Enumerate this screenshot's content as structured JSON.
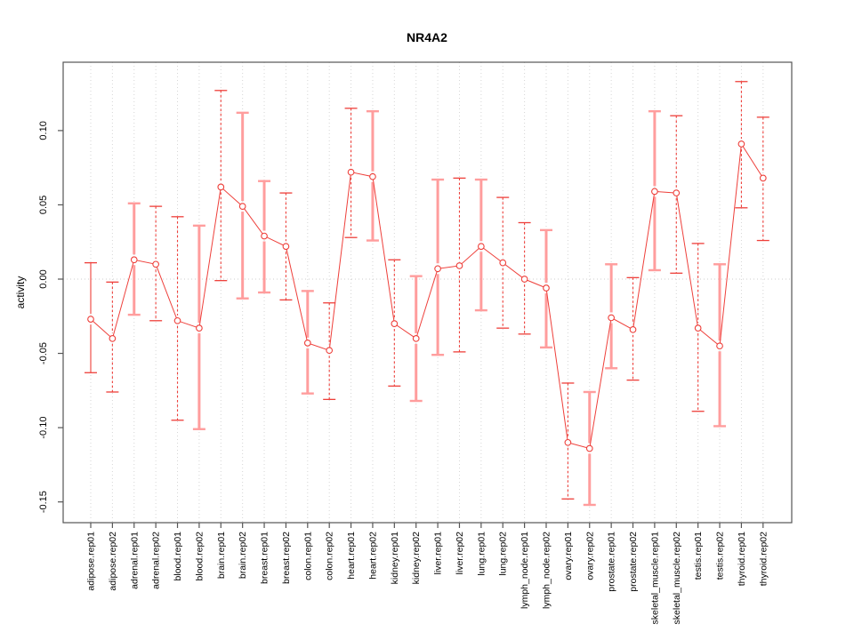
{
  "chart_data": {
    "type": "scatter",
    "title": "NR4A2",
    "xlabel": "",
    "ylabel": "activity",
    "legend": "none",
    "grid": "vertical dotted gridline per category; dotted horizontal line at y=0",
    "ylim": [
      -0.164,
      0.146
    ],
    "yticks": [
      0.1,
      0.05,
      0.0,
      -0.05,
      -0.1,
      -0.15
    ],
    "ytick_labels": [
      "0.10",
      "0.05",
      "0.00",
      "-0.05",
      "-0.10",
      "-0.15"
    ],
    "x_tick_rotation": 90,
    "categories": [
      "adipose.rep01",
      "adipose.rep02",
      "adrenal.rep01",
      "adrenal.rep02",
      "blood.rep01",
      "blood.rep02",
      "brain.rep01",
      "brain.rep02",
      "breast.rep01",
      "breast.rep02",
      "colon.rep01",
      "colon.rep02",
      "heart.rep01",
      "heart.rep02",
      "kidney.rep01",
      "kidney.rep02",
      "liver.rep01",
      "liver.rep02",
      "lung.rep01",
      "lung.rep02",
      "lymph_node.rep01",
      "lymph_node.rep02",
      "ovary.rep01",
      "ovary.rep02",
      "prostate.rep01",
      "prostate.rep02",
      "skeletal_muscle.rep01",
      "skeletal_muscle.rep02",
      "testis.rep01",
      "testis.rep02",
      "thyroid.rep01",
      "thyroid.rep02"
    ],
    "series": [
      {
        "name": "activity",
        "values": [
          -0.027,
          -0.04,
          0.013,
          0.01,
          -0.028,
          -0.033,
          0.062,
          0.049,
          0.029,
          0.022,
          -0.043,
          -0.048,
          0.072,
          0.069,
          -0.03,
          -0.04,
          0.007,
          0.009,
          0.022,
          0.011,
          0.0,
          -0.006,
          -0.11,
          -0.114,
          -0.026,
          -0.034,
          0.059,
          0.058,
          -0.033,
          -0.045,
          0.091,
          0.068
        ],
        "error_low": [
          -0.063,
          -0.076,
          -0.024,
          -0.028,
          -0.095,
          -0.101,
          -0.001,
          -0.013,
          -0.009,
          -0.014,
          -0.077,
          -0.081,
          0.028,
          0.026,
          -0.072,
          -0.082,
          -0.051,
          -0.049,
          -0.021,
          -0.033,
          -0.037,
          -0.046,
          -0.148,
          -0.152,
          -0.06,
          -0.068,
          0.006,
          0.004,
          -0.089,
          -0.099,
          0.048,
          0.026
        ],
        "error_high": [
          0.011,
          -0.002,
          0.051,
          0.049,
          0.042,
          0.036,
          0.127,
          0.112,
          0.066,
          0.058,
          -0.008,
          -0.016,
          0.115,
          0.113,
          0.013,
          0.002,
          0.067,
          0.068,
          0.067,
          0.055,
          0.038,
          0.033,
          -0.07,
          -0.076,
          0.01,
          0.001,
          0.113,
          0.11,
          0.024,
          0.01,
          0.133,
          0.109
        ],
        "bar_styles": [
          "solid_thin",
          "dashed",
          "solid",
          "dashed",
          "dashed",
          "solid",
          "dashed",
          "solid",
          "solid",
          "dashed",
          "solid",
          "dashed",
          "dashed",
          "solid",
          "dashed",
          "solid",
          "solid",
          "dashed",
          "solid",
          "dashed",
          "dashed",
          "solid",
          "dashed",
          "solid",
          "solid",
          "dashed",
          "solid",
          "dashed",
          "dashed",
          "solid",
          "dashed",
          "dashed"
        ]
      }
    ],
    "colors": {
      "point": "#ee3f3a",
      "line": "#ee3f3a",
      "errorbar_dashed": "#ee3f3a",
      "errorbar_solid": "#ff9d9d",
      "grid": "#d6d6d6",
      "zero_line": "#cccccc",
      "frame": "#555555",
      "text": "#000000",
      "background": "#ffffff"
    }
  }
}
